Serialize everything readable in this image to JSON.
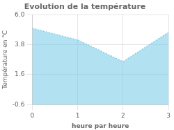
{
  "chart_data": {
    "type": "area",
    "title": "Evolution de la température",
    "xlabel": "heure par heure",
    "ylabel": "Température en °C",
    "x": [
      0,
      1,
      2,
      3
    ],
    "values": [
      5.0,
      4.15,
      2.55,
      4.7
    ],
    "xlim": [
      0,
      3
    ],
    "ylim": [
      -0.6,
      6.0
    ],
    "xticks": [
      0,
      1,
      2,
      3
    ],
    "yticks": [
      -0.6,
      1.6,
      3.8,
      {
        "value": 6.0,
        "label": "6.0"
      }
    ],
    "color": "#7ecfea",
    "line_style": "dotted",
    "grid": true
  }
}
